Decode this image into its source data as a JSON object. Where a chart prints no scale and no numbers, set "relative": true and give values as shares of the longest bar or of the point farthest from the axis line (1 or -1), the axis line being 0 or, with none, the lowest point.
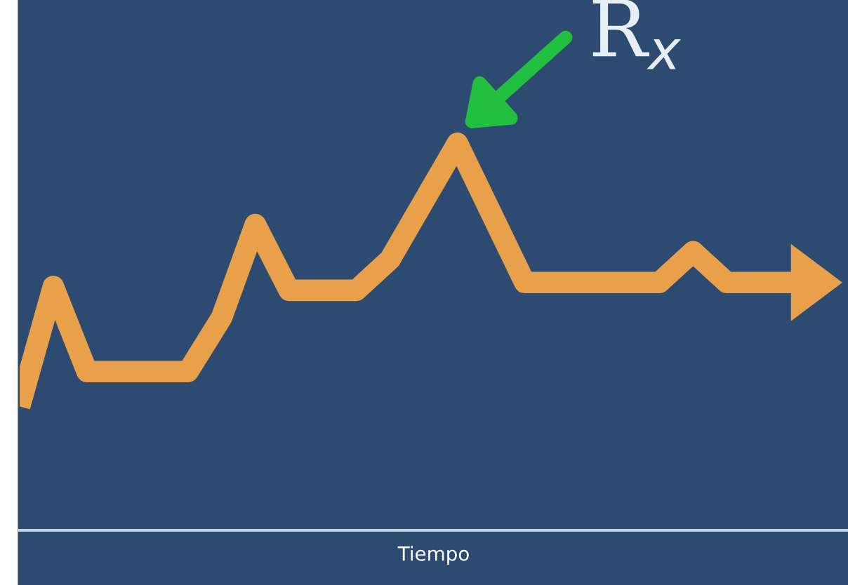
{
  "chart_data": {
    "type": "line",
    "relative": true,
    "xlabel": "Tiempo",
    "categories": [
      null,
      null,
      null,
      null,
      null,
      null,
      null,
      null,
      null,
      null,
      null,
      null,
      null,
      null,
      null,
      null,
      null,
      null,
      null,
      null,
      null,
      null,
      null,
      null,
      null
    ],
    "series": [
      {
        "color": "#e8a04a",
        "values": [
          0.32,
          0.63,
          0.41,
          0.41,
          0.41,
          0.41,
          0.55,
          0.79,
          0.62,
          0.62,
          0.62,
          0.7,
          0.85,
          1,
          0.82,
          0.64,
          0.64,
          0.64,
          0.64,
          0.64,
          0.72,
          0.64,
          0.64,
          0.64,
          0.64
        ]
      }
    ],
    "annotations": [
      "R$_{x}$"
    ],
    "legend": false,
    "marker": "none",
    "line_style": "solid",
    "tick_labels": false
  }
}
